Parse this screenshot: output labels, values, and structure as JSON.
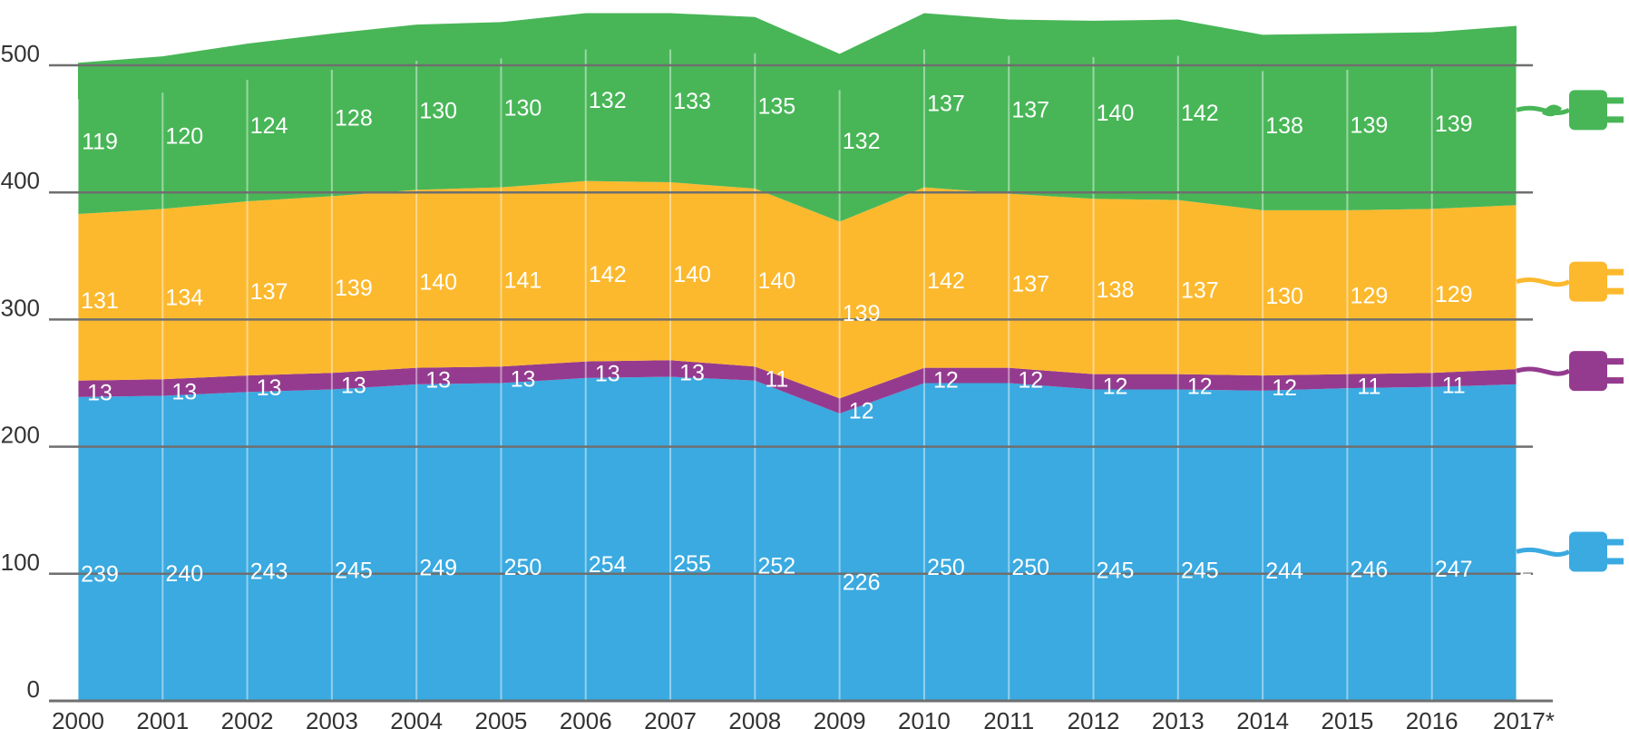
{
  "chart_data": {
    "type": "area",
    "stacked": true,
    "title": "",
    "xlabel": "",
    "ylabel": "",
    "ylim": [
      0,
      500
    ],
    "yticks": [
      0,
      100,
      200,
      300,
      400,
      500
    ],
    "grid": true,
    "legend": "right (icon only)",
    "categories": [
      "2000",
      "2001",
      "2002",
      "2003",
      "2004",
      "2005",
      "2006",
      "2007",
      "2008",
      "2009",
      "2010",
      "2011",
      "2012",
      "2013",
      "2014",
      "2015",
      "2016",
      "2017*"
    ],
    "series": [
      {
        "name": "blue",
        "color": "#3aaae1",
        "icon": "plug-icon",
        "values": [
          239,
          240,
          243,
          245,
          249,
          250,
          254,
          255,
          252,
          226,
          250,
          250,
          245,
          245,
          244,
          246,
          247,
          249
        ]
      },
      {
        "name": "purple",
        "color": "#953b8f",
        "icon": "plug-icon",
        "values": [
          13,
          13,
          13,
          13,
          13,
          13,
          13,
          13,
          11,
          12,
          12,
          12,
          12,
          12,
          12,
          11,
          11,
          12
        ]
      },
      {
        "name": "yellow",
        "color": "#fcb92e",
        "icon": "plug-icon",
        "values": [
          131,
          134,
          137,
          139,
          140,
          141,
          142,
          140,
          140,
          139,
          142,
          137,
          138,
          137,
          130,
          129,
          129,
          129
        ]
      },
      {
        "name": "green",
        "color": "#48b657",
        "icon": "plug-leaf-icon",
        "values": [
          119,
          120,
          124,
          128,
          130,
          130,
          132,
          133,
          135,
          132,
          137,
          137,
          140,
          142,
          138,
          139,
          139,
          141
        ]
      }
    ]
  }
}
